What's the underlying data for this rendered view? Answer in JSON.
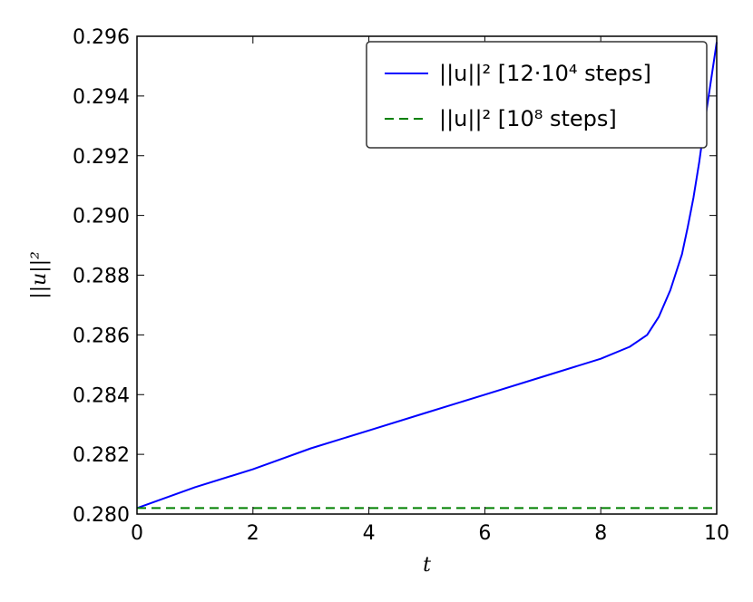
{
  "chart_data": {
    "type": "line",
    "title": "",
    "xlabel": "t",
    "ylabel": "||u||²",
    "xlim": [
      0,
      10
    ],
    "ylim": [
      0.28,
      0.296
    ],
    "xticks": [
      0,
      2,
      4,
      6,
      8,
      10
    ],
    "xtick_labels": [
      "0",
      "2",
      "4",
      "6",
      "8",
      "10"
    ],
    "yticks": [
      0.28,
      0.282,
      0.284,
      0.286,
      0.288,
      0.29,
      0.292,
      0.294,
      0.296
    ],
    "ytick_labels": [
      "0.280",
      "0.282",
      "0.284",
      "0.286",
      "0.288",
      "0.290",
      "0.292",
      "0.294",
      "0.296"
    ],
    "grid": false,
    "legend_position": "top-right",
    "series": [
      {
        "name": "||u||²  [12·10⁴  steps]",
        "color": "#0000ff",
        "style": "solid",
        "x": [
          0,
          1,
          2,
          3,
          4,
          5,
          6,
          7,
          8,
          8.5,
          8.8,
          9.0,
          9.2,
          9.4,
          9.5,
          9.6,
          9.7,
          9.8,
          9.9,
          10.0
        ],
        "y": [
          0.2802,
          0.2809,
          0.2815,
          0.2822,
          0.2828,
          0.2834,
          0.284,
          0.2846,
          0.2852,
          0.2856,
          0.286,
          0.2866,
          0.2875,
          0.2887,
          0.2896,
          0.2906,
          0.2918,
          0.2932,
          0.2945,
          0.2958
        ]
      },
      {
        "name": "||u||²  [10⁸  steps]",
        "color": "#008000",
        "style": "dashed",
        "x": [
          0,
          10
        ],
        "y": [
          0.2802,
          0.2802
        ]
      }
    ]
  }
}
